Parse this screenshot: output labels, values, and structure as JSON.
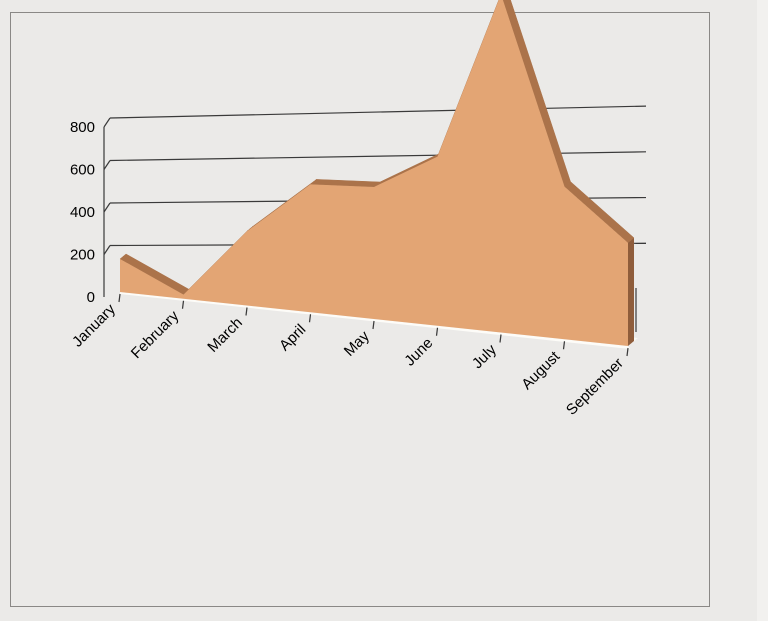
{
  "chart_data": {
    "type": "area",
    "style": "3d",
    "categories": [
      "January",
      "February",
      "March",
      "April",
      "May",
      "June",
      "July",
      "August",
      "September"
    ],
    "series": [
      {
        "values": [
          80,
          10,
          180,
          310,
          320,
          410,
          820,
          370,
          250
        ]
      }
    ],
    "yticks": [
      "0",
      "200",
      "400",
      "600",
      "800"
    ],
    "ylim": [
      0,
      800
    ],
    "grid": true,
    "legend": "none",
    "title": "",
    "xlabel": "",
    "ylabel": "",
    "colors": {
      "area_front": "#e3a574",
      "area_top": "#ab734a",
      "area_side": "#8f5d3b",
      "floor": "#fbf9f3",
      "gridline": "#3a3a3a",
      "background": "#ebeae8"
    }
  }
}
